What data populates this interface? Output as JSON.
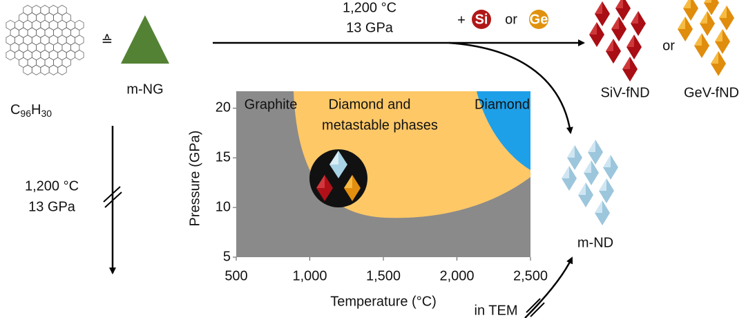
{
  "top_route": {
    "temperature": "1,200 °C",
    "pressure": "13 GPa",
    "plus": "+",
    "dopant1": "Si",
    "or": "or",
    "dopant2": "Ge"
  },
  "precursor": {
    "formula": [
      "C",
      "96",
      "H",
      "30"
    ],
    "equivalent": "≙",
    "name": "m-NG"
  },
  "products": {
    "siv": "SiV-fND",
    "or": "or",
    "gev": "GeV-fND",
    "nd": "m-ND"
  },
  "left_route": {
    "temperature": "1,200 °C",
    "pressure": "13 GPa"
  },
  "tem_route": "in TEM",
  "chart_data": {
    "type": "phase-diagram",
    "xlabel": "Temperature (°C)",
    "ylabel": "Pressure (GPa)",
    "xlim": [
      500,
      2500
    ],
    "ylim": [
      5,
      21.7
    ],
    "xticks": [
      500,
      {
        "value": 1000,
        "label": "1,000"
      },
      {
        "value": 1500,
        "label": "1,500"
      },
      {
        "value": 2000,
        "label": "2,000"
      },
      {
        "value": 2500,
        "label": "2,500"
      }
    ],
    "yticks": [
      5,
      10,
      15,
      20
    ],
    "regions": [
      {
        "name": "Graphite",
        "color": "#8a8a8a"
      },
      {
        "name": [
          "Diamond and",
          "metastable phases"
        ],
        "color": "#ffc867"
      },
      {
        "name": "Diamond",
        "color": "#1ea0e8"
      }
    ]
  }
}
